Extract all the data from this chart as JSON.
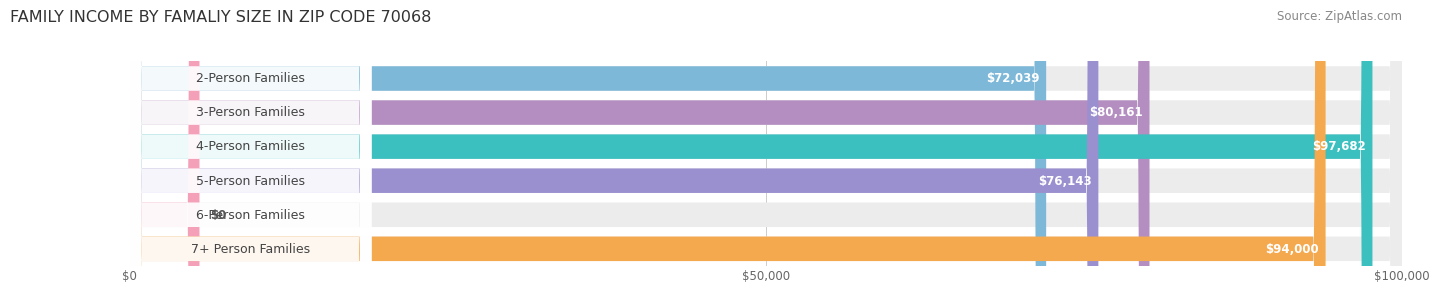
{
  "title": "FAMILY INCOME BY FAMALIY SIZE IN ZIP CODE 70068",
  "source": "Source: ZipAtlas.com",
  "categories": [
    "2-Person Families",
    "3-Person Families",
    "4-Person Families",
    "5-Person Families",
    "6-Person Families",
    "7+ Person Families"
  ],
  "values": [
    72039,
    80161,
    97682,
    76143,
    0,
    94000
  ],
  "labels": [
    "$72,039",
    "$80,161",
    "$97,682",
    "$76,143",
    "$0",
    "$94,000"
  ],
  "bar_colors": [
    "#7db8d8",
    "#b48ec0",
    "#3bbfbf",
    "#9b90cf",
    "#f4a0b8",
    "#f5a94e"
  ],
  "bar_bg_color": "#ececec",
  "label_bg_color": "#f5f5f5",
  "xmax": 100000,
  "xtick_labels": [
    "$0",
    "$50,000",
    "$100,000"
  ],
  "fig_bg_color": "#ffffff",
  "title_fontsize": 11.5,
  "source_fontsize": 8.5,
  "cat_fontsize": 9,
  "val_fontsize": 8.5
}
